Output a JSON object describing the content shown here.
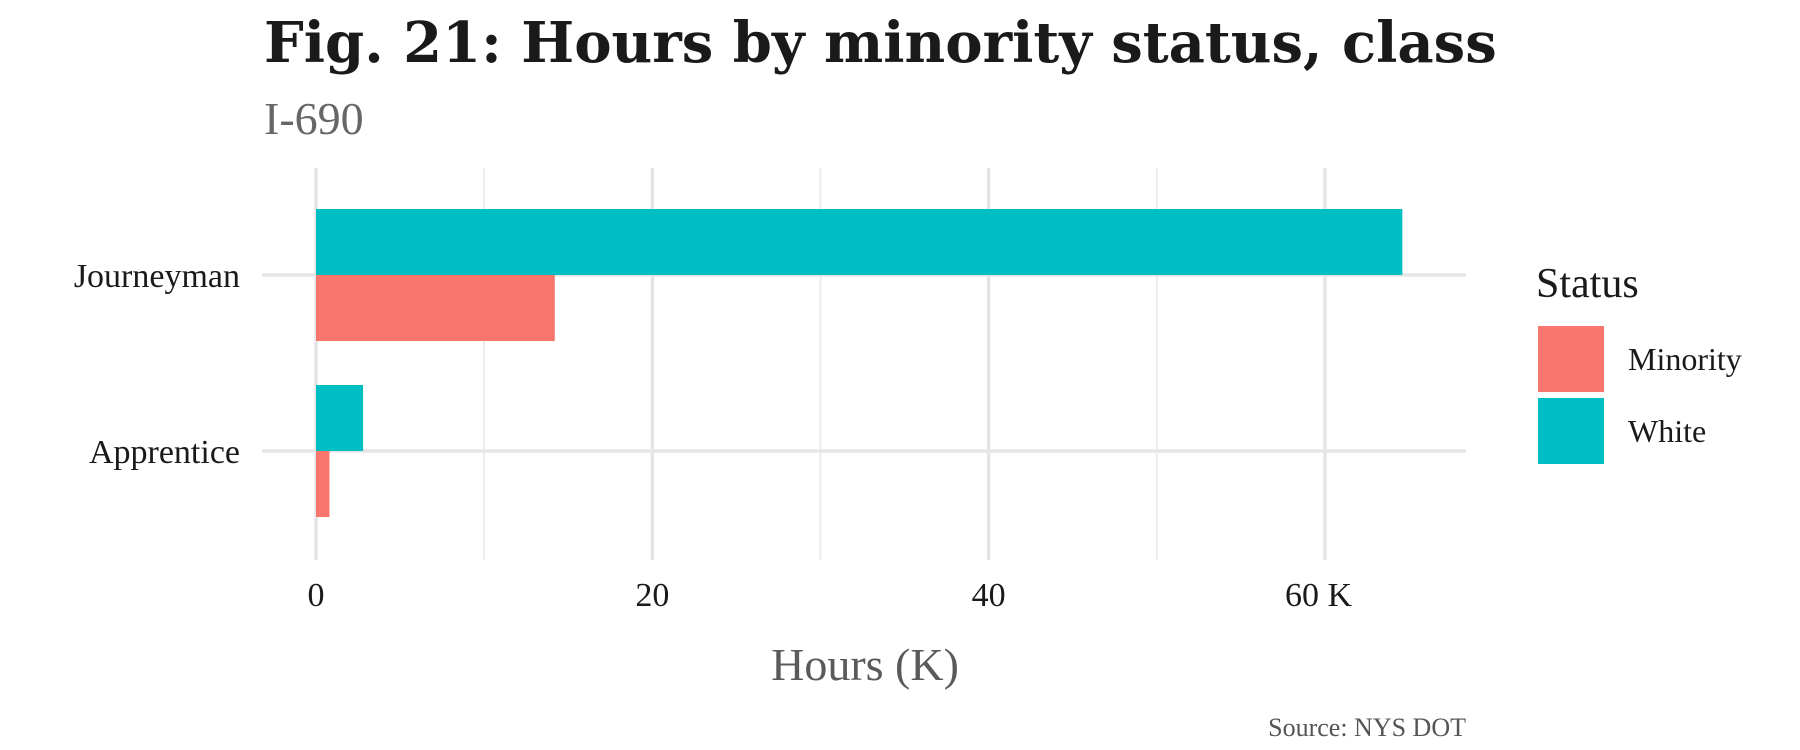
{
  "chart_data": {
    "type": "bar",
    "orientation": "horizontal",
    "title": "Fig. 21: Hours by minority status, class",
    "subtitle": "I-690",
    "xlabel": "Hours (K)",
    "ylabel": "",
    "categories": [
      "Journeyman",
      "Apprentice"
    ],
    "series": [
      {
        "name": "White",
        "values": [
          64.6,
          2.8
        ],
        "color": "#00BFC4"
      },
      {
        "name": "Minority",
        "values": [
          14.2,
          0.8
        ],
        "color": "#F8766D"
      }
    ],
    "xlim": [
      0,
      68
    ],
    "x_ticks": [
      {
        "value": 0,
        "label": "0"
      },
      {
        "value": 20,
        "label": "20"
      },
      {
        "value": 40,
        "label": "40"
      },
      {
        "value": 60,
        "label": "60 K"
      }
    ],
    "x_minor_ticks": [
      10,
      30,
      50
    ],
    "grid": true,
    "legend": {
      "title": "Status",
      "placement": "right",
      "entries": [
        {
          "label": "Minority",
          "color": "#F8766D"
        },
        {
          "label": "White",
          "color": "#00BFC4"
        }
      ]
    },
    "caption": "Source: NYS DOT"
  }
}
